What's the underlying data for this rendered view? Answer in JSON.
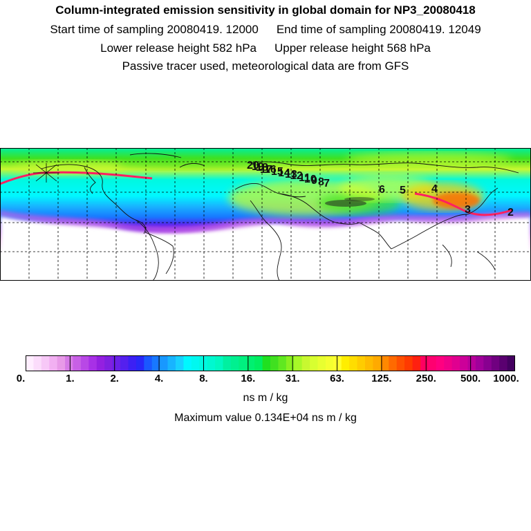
{
  "header": {
    "title": "Column-integrated emission sensitivity in global domain for NP3_20080418",
    "start_time": "Start time of sampling 20080419. 12000",
    "end_time": "End time of sampling 20080419. 12049",
    "lower_height": "Lower release height  582 hPa",
    "upper_height": "Upper release height  568 hPa",
    "note": "Passive tracer used, meteorological data are from GFS"
  },
  "colorbar": {
    "tick_labels": [
      "0.",
      "1.",
      "2.",
      "4.",
      "8.",
      "16.",
      "31.",
      "63.",
      "125.",
      "250.",
      "500.",
      "1000."
    ],
    "colors": [
      "#ffeeff",
      "#fbdcfb",
      "#f7c8f7",
      "#f2b0f2",
      "#e89ae8",
      "#d67ae6",
      "#c860e6",
      "#b848e6",
      "#a830e6",
      "#9420e0",
      "#8020e0",
      "#6a20e8",
      "#5420ee",
      "#3c20f4",
      "#2828f8",
      "#1a58ff",
      "#1878ff",
      "#1898ff",
      "#18b4ff",
      "#18d0ff",
      "#00f8ff",
      "#00f8f0",
      "#00f8e0",
      "#00f8d0",
      "#00f8c0",
      "#00f0a0",
      "#00f090",
      "#00f080",
      "#00f070",
      "#00ee60",
      "#20e020",
      "#40e020",
      "#60e820",
      "#88f020",
      "#a8f828",
      "#c8f830",
      "#d8ff30",
      "#e8ff30",
      "#f4ff30",
      "#ffff30",
      "#ffee00",
      "#ffdd00",
      "#ffcc00",
      "#ffbb00",
      "#ffaa00",
      "#ff8800",
      "#ff6a00",
      "#ff5000",
      "#ff3a00",
      "#ff2010",
      "#ff0060",
      "#ff0070",
      "#ff0080",
      "#f00088",
      "#e00090",
      "#cc0099",
      "#b8009a",
      "#a0009a",
      "#880090",
      "#700080",
      "#5a0070",
      "#440060"
    ]
  },
  "units": "ns m / kg",
  "max_value": "Maximum value  0.134E+04 ns m / kg",
  "map": {
    "trajectory_labels": [
      "20",
      "19",
      "18",
      "17",
      "16",
      "15",
      "14",
      "13",
      "12",
      "11",
      "10",
      "9",
      "8",
      "7",
      "6",
      "5",
      "4",
      "3",
      "2"
    ]
  }
}
